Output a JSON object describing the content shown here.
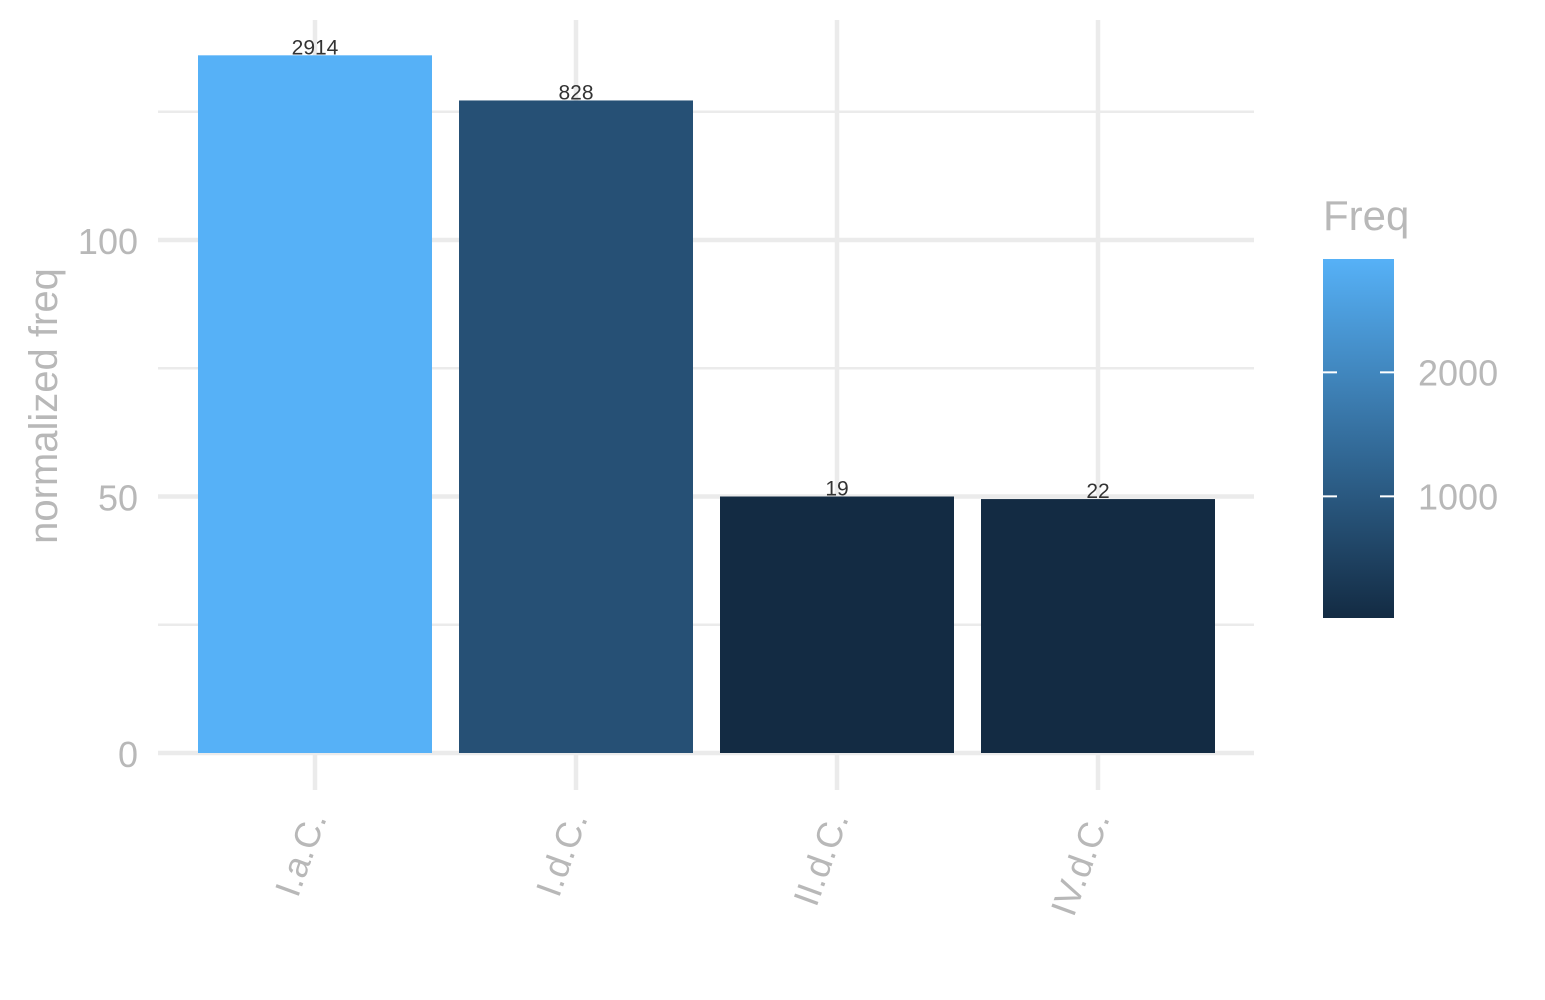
{
  "chart_data": {
    "type": "bar",
    "title": "",
    "xlabel": "",
    "ylabel": "normalized freq",
    "categories": [
      "I.a.C.",
      "I.d.C.",
      "II.d.C.",
      "IV.d.C."
    ],
    "values": [
      136,
      127.2,
      50,
      49.5
    ],
    "bar_labels": [
      "2914",
      "828",
      "19",
      "22"
    ],
    "fill_values": [
      2914,
      828,
      19,
      22
    ],
    "ylim": [
      0,
      142
    ],
    "yticks": [
      0,
      50,
      100
    ],
    "grid": true,
    "legend": {
      "title": "Freq",
      "placement": "right",
      "ticks": [
        1000,
        2000
      ],
      "tick_labels": [
        "1000",
        "2000"
      ],
      "range": [
        19,
        2914
      ],
      "low_color": "#132B43",
      "high_color": "#56B1F7"
    },
    "colors": {
      "grid": "#ebebeb",
      "axis_text": "#b8b8b8",
      "bar_label": "#333333"
    }
  }
}
